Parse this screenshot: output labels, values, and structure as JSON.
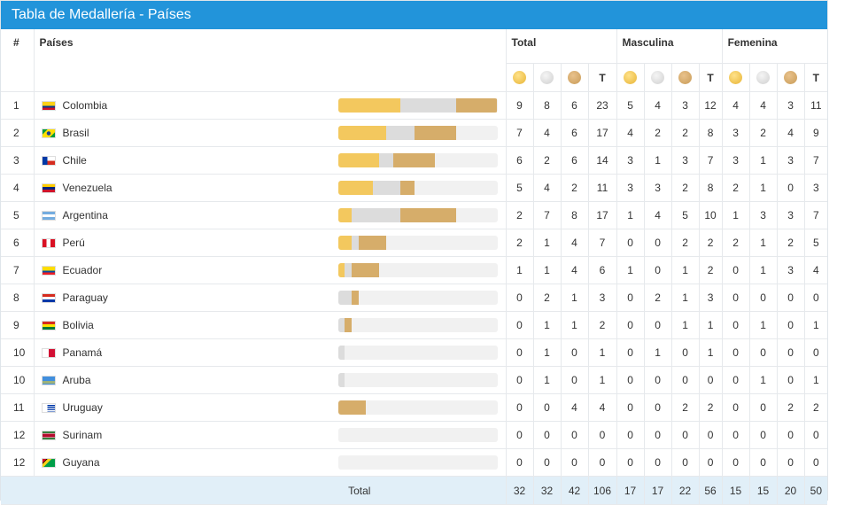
{
  "title": "Tabla de Medallería - Países",
  "headers": {
    "index": "#",
    "country": "Países",
    "total": "Total",
    "male": "Masculina",
    "female": "Femenina",
    "t": "T"
  },
  "colors": {
    "header": "#2294da",
    "gold": "#f3c85e",
    "silver": "#dcdcdc",
    "bronze": "#d6ad6a"
  },
  "max_total": 23,
  "rows": [
    {
      "rank": "1",
      "country": "Colombia",
      "flag": "colombia",
      "total": [
        9,
        8,
        6,
        23
      ],
      "male": [
        5,
        4,
        3,
        12
      ],
      "female": [
        4,
        4,
        3,
        11
      ]
    },
    {
      "rank": "2",
      "country": "Brasil",
      "flag": "brasil",
      "total": [
        7,
        4,
        6,
        17
      ],
      "male": [
        4,
        2,
        2,
        8
      ],
      "female": [
        3,
        2,
        4,
        9
      ]
    },
    {
      "rank": "3",
      "country": "Chile",
      "flag": "chile",
      "total": [
        6,
        2,
        6,
        14
      ],
      "male": [
        3,
        1,
        3,
        7
      ],
      "female": [
        3,
        1,
        3,
        7
      ]
    },
    {
      "rank": "4",
      "country": "Venezuela",
      "flag": "venezuela",
      "total": [
        5,
        4,
        2,
        11
      ],
      "male": [
        3,
        3,
        2,
        8
      ],
      "female": [
        2,
        1,
        0,
        3
      ]
    },
    {
      "rank": "5",
      "country": "Argentina",
      "flag": "argentina",
      "total": [
        2,
        7,
        8,
        17
      ],
      "male": [
        1,
        4,
        5,
        10
      ],
      "female": [
        1,
        3,
        3,
        7
      ]
    },
    {
      "rank": "6",
      "country": "Perú",
      "flag": "peru",
      "total": [
        2,
        1,
        4,
        7
      ],
      "male": [
        0,
        0,
        2,
        2
      ],
      "female": [
        2,
        1,
        2,
        5
      ]
    },
    {
      "rank": "7",
      "country": "Ecuador",
      "flag": "ecuador",
      "total": [
        1,
        1,
        4,
        6
      ],
      "male": [
        1,
        0,
        1,
        2
      ],
      "female": [
        0,
        1,
        3,
        4
      ]
    },
    {
      "rank": "8",
      "country": "Paraguay",
      "flag": "paraguay",
      "total": [
        0,
        2,
        1,
        3
      ],
      "male": [
        0,
        2,
        1,
        3
      ],
      "female": [
        0,
        0,
        0,
        0
      ]
    },
    {
      "rank": "9",
      "country": "Bolivia",
      "flag": "bolivia",
      "total": [
        0,
        1,
        1,
        2
      ],
      "male": [
        0,
        0,
        1,
        1
      ],
      "female": [
        0,
        1,
        0,
        1
      ]
    },
    {
      "rank": "10",
      "country": "Panamá",
      "flag": "panama",
      "total": [
        0,
        1,
        0,
        1
      ],
      "male": [
        0,
        1,
        0,
        1
      ],
      "female": [
        0,
        0,
        0,
        0
      ]
    },
    {
      "rank": "10",
      "country": "Aruba",
      "flag": "aruba",
      "total": [
        0,
        1,
        0,
        1
      ],
      "male": [
        0,
        0,
        0,
        0
      ],
      "female": [
        0,
        1,
        0,
        1
      ]
    },
    {
      "rank": "11",
      "country": "Uruguay",
      "flag": "uruguay",
      "total": [
        0,
        0,
        4,
        4
      ],
      "male": [
        0,
        0,
        2,
        2
      ],
      "female": [
        0,
        0,
        2,
        2
      ]
    },
    {
      "rank": "12",
      "country": "Surinam",
      "flag": "surinam",
      "total": [
        0,
        0,
        0,
        0
      ],
      "male": [
        0,
        0,
        0,
        0
      ],
      "female": [
        0,
        0,
        0,
        0
      ]
    },
    {
      "rank": "12",
      "country": "Guyana",
      "flag": "guyana",
      "total": [
        0,
        0,
        0,
        0
      ],
      "male": [
        0,
        0,
        0,
        0
      ],
      "female": [
        0,
        0,
        0,
        0
      ]
    }
  ],
  "footer": {
    "label": "Total",
    "total": [
      32,
      32,
      42,
      106
    ],
    "male": [
      17,
      17,
      22,
      56
    ],
    "female": [
      15,
      15,
      20,
      50
    ]
  }
}
